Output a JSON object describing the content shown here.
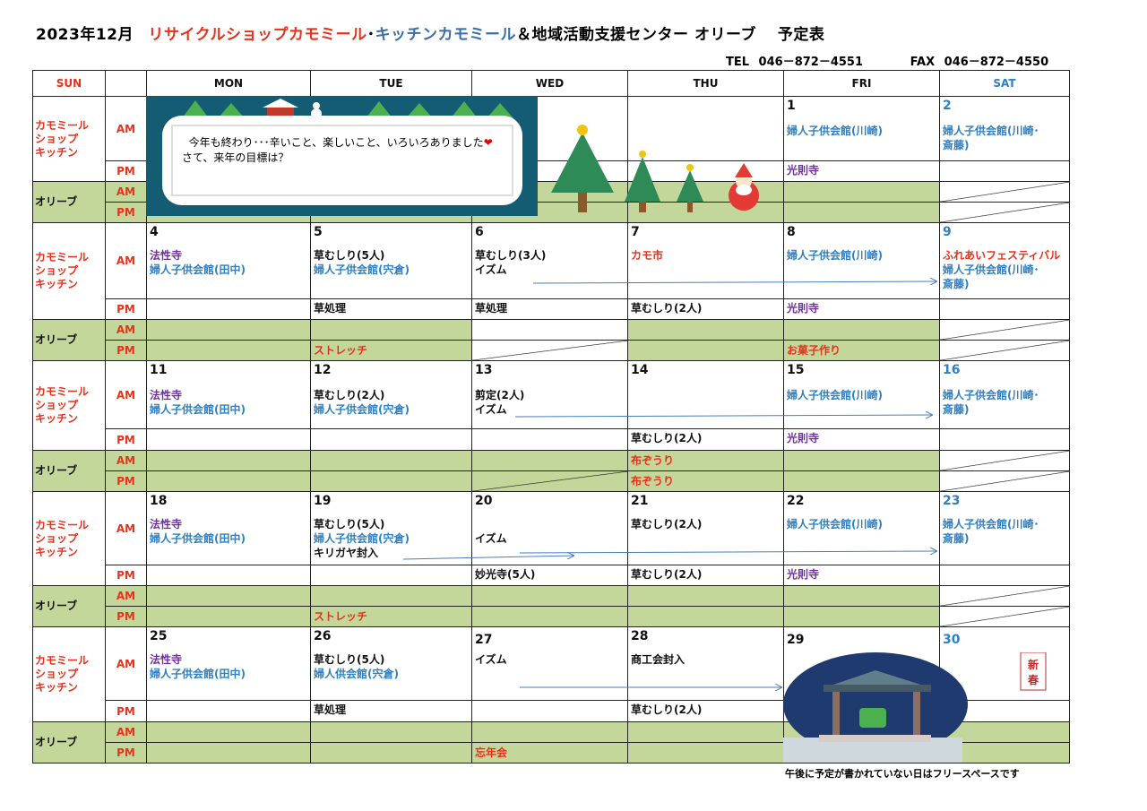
{
  "title": {
    "year_month": "2023年12月",
    "shop": "リサイクルショップカモミール",
    "sep": "･",
    "kitchen": "キッチンカモミール",
    "rest": "＆地域活動支援センター オリーブ　 予定表"
  },
  "contact": {
    "tel": "TEL 046－872－4551",
    "fax": "FAX 046－872－4550"
  },
  "colors": {
    "red": "#e8311a",
    "blue": "#2f7fc1",
    "purple": "#7030a0",
    "black": "#111111",
    "green": "#c4d79b",
    "kitchen_blue": "#3a6ea5"
  },
  "headers": [
    "SUN",
    "",
    "MON",
    "TUE",
    "WED",
    "THU",
    "FRI",
    "SAT"
  ],
  "row_labels": {
    "shop": "カモミール\nショップ\nキッチン",
    "olive": "オリーブ",
    "am": "AM",
    "pm": "PM"
  },
  "banner": {
    "line1": "今年も終わり･･･辛いこと、楽しいこと、いろいろありました",
    "line2": "さて、来年の目標は？",
    "heart": "❤"
  },
  "new_year_sign": "新春",
  "footer_note": "午後に予定が書かれていない日はフリースペースです",
  "weeks": [
    {
      "dates": [
        "",
        "",
        "",
        "",
        "1",
        "2"
      ],
      "am": [
        [],
        [],
        [],
        [],
        [
          [
            "blue",
            "婦人子供会館(川崎)"
          ]
        ],
        [
          [
            "blue",
            "婦人子供会館(川崎･"
          ],
          [
            "blue",
            "斎藤)"
          ]
        ]
      ],
      "pm": [
        [],
        [],
        [],
        [],
        [
          [
            "purple",
            "光則寺"
          ]
        ],
        []
      ],
      "oam": [
        [],
        [],
        [],
        [],
        [],
        []
      ],
      "opm": [
        [],
        [],
        [],
        [],
        [],
        []
      ],
      "white_olive": [
        5
      ],
      "slash_am": [
        5
      ],
      "slash_pm": [
        5
      ]
    },
    {
      "dates": [
        "4",
        "5",
        "6",
        "7",
        "8",
        "9"
      ],
      "am": [
        [
          [
            "purple",
            "法性寺"
          ],
          [
            "blue",
            "婦人子供会館(田中)"
          ]
        ],
        [
          [
            "black",
            "草むしり(5人)"
          ],
          [
            "blue",
            "婦人子供会館(宍倉)"
          ]
        ],
        [
          [
            "black",
            "草むしり(3人)"
          ],
          [
            "black",
            "イズム"
          ]
        ],
        [
          [
            "red",
            "カモ市"
          ]
        ],
        [
          [
            "blue",
            "婦人子供会館(川崎)"
          ]
        ],
        [
          [
            "red",
            "ふれあいフェスティバル"
          ],
          [
            "blue",
            "婦人子供会館(川崎･"
          ],
          [
            "blue",
            "斎藤)"
          ]
        ]
      ],
      "pm": [
        [],
        [
          [
            "black",
            "草処理"
          ]
        ],
        [
          [
            "black",
            "草処理"
          ]
        ],
        [
          [
            "black",
            "草むしり(2人)"
          ]
        ],
        [
          [
            "purple",
            "光則寺"
          ]
        ],
        []
      ],
      "oam": [
        [],
        [],
        [],
        [],
        [],
        []
      ],
      "opm": [
        [],
        [
          [
            "red",
            "ストレッチ"
          ]
        ],
        [],
        [],
        [
          [
            "red",
            "お菓子作り"
          ]
        ],
        []
      ],
      "white_olive": [
        2,
        5
      ],
      "slash_am": [
        5
      ],
      "slash_pm": [
        2,
        5
      ]
    },
    {
      "dates": [
        "11",
        "12",
        "13",
        "14",
        "15",
        "16"
      ],
      "am": [
        [
          [
            "purple",
            "法性寺"
          ],
          [
            "blue",
            "婦人子供会館(田中)"
          ]
        ],
        [
          [
            "black",
            "草むしり(2人)"
          ],
          [
            "blue",
            "婦人子供会館(宍倉)"
          ]
        ],
        [
          [
            "black",
            "剪定(2人)"
          ],
          [
            "black",
            "イズム"
          ]
        ],
        [],
        [
          [
            "blue",
            "婦人子供会館(川崎)"
          ]
        ],
        [
          [
            "blue",
            "婦人子供会館(川崎･"
          ],
          [
            "blue",
            "斎藤)"
          ]
        ]
      ],
      "pm": [
        [],
        [],
        [],
        [
          [
            "black",
            "草むしり(2人)"
          ]
        ],
        [
          [
            "purple",
            "光則寺"
          ]
        ],
        []
      ],
      "oam": [
        [],
        [],
        [],
        [
          [
            "red",
            "布ぞうり"
          ]
        ],
        [],
        []
      ],
      "opm": [
        [],
        [],
        [],
        [
          [
            "red",
            "布ぞうり"
          ]
        ],
        [],
        []
      ],
      "white_olive": [
        5
      ],
      "slash_am": [
        5
      ],
      "slash_pm": [
        2,
        5
      ]
    },
    {
      "dates": [
        "18",
        "19",
        "20",
        "21",
        "22",
        "23"
      ],
      "am": [
        [
          [
            "purple",
            "法性寺"
          ],
          [
            "blue",
            "婦人子供会館(田中)"
          ]
        ],
        [
          [
            "black",
            "草むしり(5人)"
          ],
          [
            "blue",
            "婦人子供会館(宍倉)"
          ],
          [
            "black",
            "キリガヤ封入"
          ]
        ],
        [
          [
            "black",
            ""
          ],
          [
            "black",
            "イズム"
          ]
        ],
        [
          [
            "black",
            "草むしり(2人)"
          ]
        ],
        [
          [
            "blue",
            "婦人子供会館(川崎)"
          ]
        ],
        [
          [
            "blue",
            "婦人子供会館(川崎･"
          ],
          [
            "blue",
            "斎藤)"
          ]
        ]
      ],
      "pm": [
        [],
        [],
        [
          [
            "black",
            "妙光寺(5人)"
          ]
        ],
        [
          [
            "black",
            "草むしり(2人)"
          ]
        ],
        [
          [
            "purple",
            "光則寺"
          ]
        ],
        []
      ],
      "oam": [
        [],
        [],
        [],
        [],
        [],
        []
      ],
      "opm": [
        [],
        [
          [
            "red",
            "ストレッチ"
          ]
        ],
        [],
        [],
        [],
        []
      ],
      "white_olive": [
        5
      ],
      "slash_am": [
        5
      ],
      "slash_pm": [
        5
      ]
    },
    {
      "dates": [
        "25",
        "26",
        "27",
        "28",
        "29",
        "30"
      ],
      "am": [
        [
          [
            "purple",
            "法性寺"
          ],
          [
            "blue",
            "婦人子供会館(田中)"
          ]
        ],
        [
          [
            "black",
            "草むしり(5人)"
          ],
          [
            "blue",
            "婦人供会館(宍倉)"
          ]
        ],
        [
          [
            "black",
            "イズム"
          ]
        ],
        [
          [
            "black",
            "商工会封入"
          ]
        ],
        [],
        []
      ],
      "pm": [
        [],
        [
          [
            "black",
            "草処理"
          ]
        ],
        [],
        [
          [
            "black",
            "草むしり(2人)"
          ]
        ],
        [],
        []
      ],
      "oam": [
        [],
        [],
        [],
        [],
        [],
        []
      ],
      "opm": [
        [],
        [],
        [
          [
            "red",
            "忘年会"
          ]
        ],
        [],
        [],
        []
      ],
      "white_olive": [],
      "slash_am": [],
      "slash_pm": []
    }
  ]
}
